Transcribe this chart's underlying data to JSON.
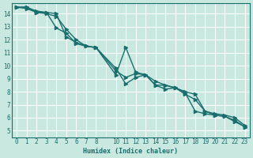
{
  "xlabel": "Humidex (Indice chaleur)",
  "ylabel": "",
  "bg_color": "#c8e8e0",
  "grid_color": "#ffffff",
  "line_color": "#1a6e6e",
  "xlim": [
    -0.5,
    23.5
  ],
  "ylim": [
    4.5,
    14.8
  ],
  "xticks": [
    0,
    1,
    2,
    3,
    4,
    5,
    6,
    7,
    8,
    10,
    11,
    12,
    13,
    14,
    15,
    16,
    17,
    18,
    19,
    20,
    21,
    22,
    23
  ],
  "yticks": [
    5,
    6,
    7,
    8,
    9,
    10,
    11,
    12,
    13,
    14
  ],
  "series1_x": [
    0,
    1,
    2,
    3,
    4,
    5,
    6,
    7,
    8,
    10,
    11,
    12,
    13,
    14,
    15,
    16,
    17,
    18,
    19,
    20,
    21,
    22,
    23
  ],
  "series1_y": [
    14.5,
    14.5,
    14.2,
    14.1,
    14.0,
    12.2,
    11.8,
    11.5,
    11.4,
    9.3,
    11.4,
    9.5,
    9.3,
    8.8,
    8.5,
    8.3,
    7.9,
    6.5,
    6.3,
    6.2,
    6.1,
    5.7,
    5.3
  ],
  "series2_x": [
    0,
    1,
    2,
    3,
    4,
    5,
    6,
    7,
    8,
    10,
    11,
    12,
    13,
    14,
    15,
    16,
    17,
    18,
    19,
    20,
    21,
    22,
    23
  ],
  "series2_y": [
    14.5,
    14.5,
    14.1,
    14.0,
    13.8,
    12.8,
    12.0,
    11.5,
    11.4,
    9.6,
    9.1,
    9.4,
    9.3,
    8.5,
    8.5,
    8.3,
    8.0,
    7.8,
    6.5,
    6.3,
    6.2,
    6.0,
    5.4
  ],
  "series3_x": [
    0,
    1,
    2,
    3,
    4,
    5,
    6,
    7,
    8,
    10,
    11,
    12,
    13,
    14,
    15,
    16,
    17,
    18,
    19,
    20,
    21,
    22,
    23
  ],
  "series3_y": [
    14.5,
    14.4,
    14.1,
    14.1,
    12.9,
    12.5,
    11.7,
    11.5,
    11.4,
    9.8,
    8.6,
    9.1,
    9.3,
    8.5,
    8.2,
    8.3,
    7.8,
    7.4,
    6.5,
    6.2,
    6.1,
    5.8,
    5.3
  ]
}
